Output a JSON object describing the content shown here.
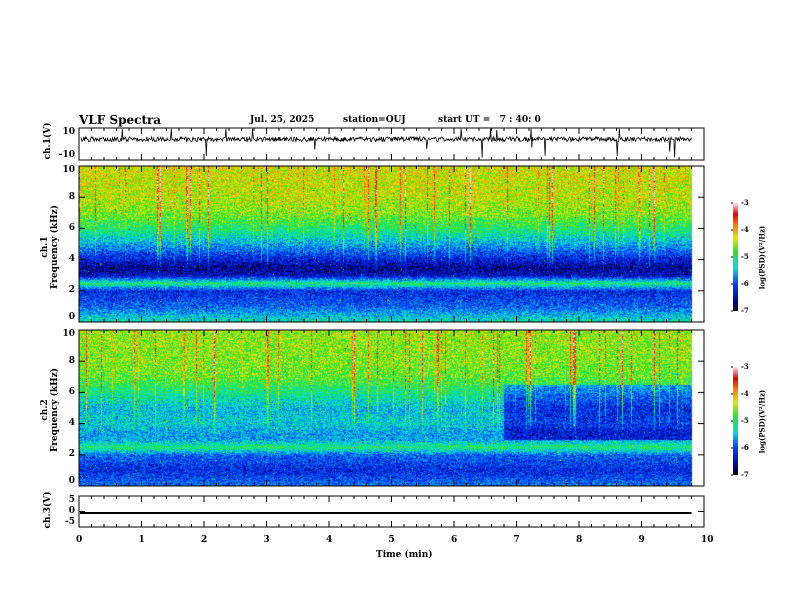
{
  "header": {
    "title": "VLF Spectra",
    "date": "Jul. 25, 2025",
    "station": "station=OUJ",
    "start": "start UT =   7 : 40: 0"
  },
  "chart_data": {
    "type": "heatmap",
    "title": "VLF Spectra",
    "xlabel": "Time (min)",
    "xlim": [
      0,
      10
    ],
    "xticks": [
      "0",
      "1",
      "2",
      "3",
      "4",
      "5",
      "6",
      "7",
      "8",
      "9",
      "10"
    ],
    "data_end_min": 9.8,
    "panels": [
      {
        "name": "ch1-waveform",
        "ylabel": "ch.1(V)",
        "ylim": [
          -10,
          10
        ],
        "yticks": [
          "10",
          "-10"
        ],
        "mean": 3,
        "noise_amp": 1.5
      },
      {
        "name": "ch1-spectrogram",
        "ylabel": "ch.1\nFrequency (kHz)",
        "ylim": [
          0,
          10
        ],
        "yticks": [
          "0",
          "2",
          "4",
          "6",
          "8",
          "10"
        ],
        "level_profile_kHz": [
          0,
          1,
          2,
          2.5,
          3,
          3.5,
          4,
          5,
          6,
          7,
          8,
          10
        ],
        "level_profile_log": [
          -5.2,
          -5.9,
          -6.2,
          -5.0,
          -6.4,
          -6.6,
          -6.3,
          -5.6,
          -5.0,
          -4.6,
          -4.4,
          -4.3
        ]
      },
      {
        "name": "ch2-spectrogram",
        "ylabel": "ch.2\nFrequency (kHz)",
        "ylim": [
          0,
          10
        ],
        "yticks": [
          "0",
          "2",
          "4",
          "6",
          "8",
          "10"
        ],
        "level_profile_kHz": [
          0,
          1,
          2,
          2.5,
          3,
          3.5,
          4,
          5,
          6,
          7,
          8,
          10
        ],
        "level_profile_log": [
          -5.8,
          -6.2,
          -5.9,
          -5.0,
          -5.6,
          -5.6,
          -5.4,
          -5.5,
          -5.1,
          -4.7,
          -4.6,
          -4.5
        ],
        "quiet_after_min": 6.8
      },
      {
        "name": "ch3-waveform",
        "ylabel": "ch.3(V)",
        "ylim": [
          -5,
          5
        ],
        "yticks": [
          "5",
          "0",
          "-5"
        ],
        "value": -0.5
      }
    ],
    "colorbar": {
      "label": "log(PSD)(V²/Hz)",
      "range": [
        -7,
        -3
      ],
      "ticks": [
        "-3",
        "-4",
        "-5",
        "-6",
        "-7"
      ]
    }
  }
}
